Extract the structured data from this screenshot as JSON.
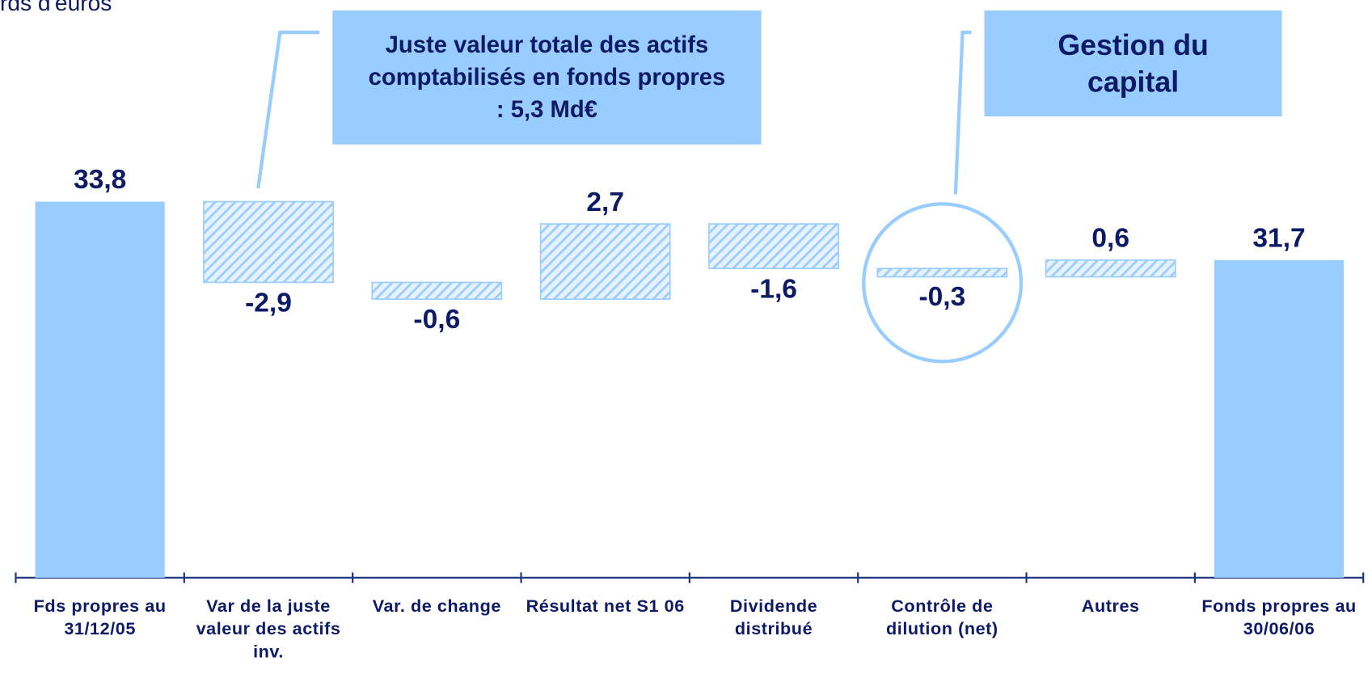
{
  "chart_data": {
    "type": "waterfall",
    "subtitle": "rds d'euros",
    "categories": [
      "Fds propres au 31/12/05",
      "Var de la juste valeur des actifs inv.",
      "Var. de change",
      "Résultat net S1 06",
      "Dividende distribué",
      "Contrôle de dilution (net)",
      "Autres",
      "Fonds propres au 30/06/06"
    ],
    "values": [
      33.8,
      -2.9,
      -0.6,
      2.7,
      -1.6,
      -0.3,
      0.6,
      31.7
    ],
    "value_labels": [
      "33,8",
      "-2,9",
      "-0,6",
      "2,7",
      "-1,6",
      "-0,3",
      "0,6",
      "31,7"
    ],
    "color": "#99ccff",
    "ylim": [
      20.3,
      40
    ],
    "annotations": [
      "Juste valeur totale des actifs comptabilisés en fonds propres : 5,3 Md€",
      "Gestion du capital"
    ]
  }
}
